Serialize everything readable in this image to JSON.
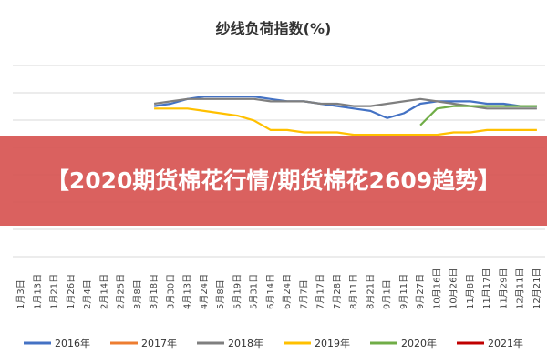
{
  "chart_data": {
    "type": "line",
    "title": "纱线负荷指数(%)",
    "xlabel": "",
    "ylabel": "",
    "grid": true,
    "legend_position": "bottom",
    "categories": [
      "1月3日",
      "1月13日",
      "1月21日",
      "1月26日",
      "2月4日",
      "2月14日",
      "2月25日",
      "3月8日",
      "3月18日",
      "3月30日",
      "4月13日",
      "4月24日",
      "5月8日",
      "5月19日",
      "5月31日",
      "6月14日",
      "6月24日",
      "7月7日",
      "7月17日",
      "7月28日",
      "8月11日",
      "8月21日",
      "9月1日",
      "9月11日",
      "9月27日",
      "10月16日",
      "10月26日",
      "11月8日",
      "11月17日",
      "11月29日",
      "12月11日",
      "12月21日"
    ],
    "series": [
      {
        "name": "2016年",
        "color": "#4472c4",
        "values": [
          null,
          null,
          null,
          null,
          null,
          null,
          null,
          null,
          83,
          84,
          86,
          87,
          87,
          87,
          87,
          86,
          85,
          85,
          84,
          83,
          82,
          81,
          78,
          80,
          84,
          85,
          85,
          85,
          84,
          84,
          83,
          83
        ]
      },
      {
        "name": "2017年",
        "color": "#ed7d31",
        "values": [
          null,
          null,
          null,
          null,
          null,
          null,
          null,
          null,
          null,
          null,
          null,
          null,
          null,
          null,
          null,
          null,
          null,
          null,
          null,
          null,
          null,
          null,
          null,
          null,
          null,
          null,
          null,
          null,
          null,
          null,
          null,
          null
        ]
      },
      {
        "name": "2018年",
        "color": "#7f7f7f",
        "values": [
          null,
          null,
          null,
          null,
          null,
          null,
          null,
          null,
          84,
          85,
          86,
          86,
          86,
          86,
          86,
          85,
          85,
          85,
          84,
          84,
          83,
          83,
          84,
          85,
          86,
          85,
          84,
          83,
          82,
          82,
          82,
          82
        ]
      },
      {
        "name": "2019年",
        "color": "#ffc000",
        "values": [
          null,
          null,
          null,
          null,
          null,
          null,
          null,
          null,
          82,
          82,
          82,
          81,
          80,
          79,
          77,
          73,
          73,
          72,
          72,
          72,
          71,
          71,
          71,
          71,
          71,
          71,
          72,
          72,
          73,
          73,
          73,
          73
        ]
      },
      {
        "name": "2020年",
        "color": "#70ad47",
        "values": [
          null,
          null,
          null,
          null,
          null,
          null,
          null,
          null,
          null,
          null,
          null,
          null,
          null,
          null,
          null,
          null,
          null,
          null,
          null,
          null,
          null,
          null,
          null,
          null,
          75,
          82,
          83,
          83,
          83,
          83,
          83,
          83
        ]
      },
      {
        "name": "2021年",
        "color": "#c00000",
        "values": [
          null,
          null,
          null,
          null,
          null,
          null,
          null,
          null,
          null,
          null,
          null,
          null,
          null,
          null,
          null,
          null,
          null,
          null,
          null,
          null,
          null,
          null,
          null,
          null,
          null,
          null,
          null,
          null,
          null,
          null,
          null,
          null
        ]
      }
    ]
  },
  "banner": {
    "text": "【2020期货棉花行情/期货棉花2609趋势】"
  }
}
